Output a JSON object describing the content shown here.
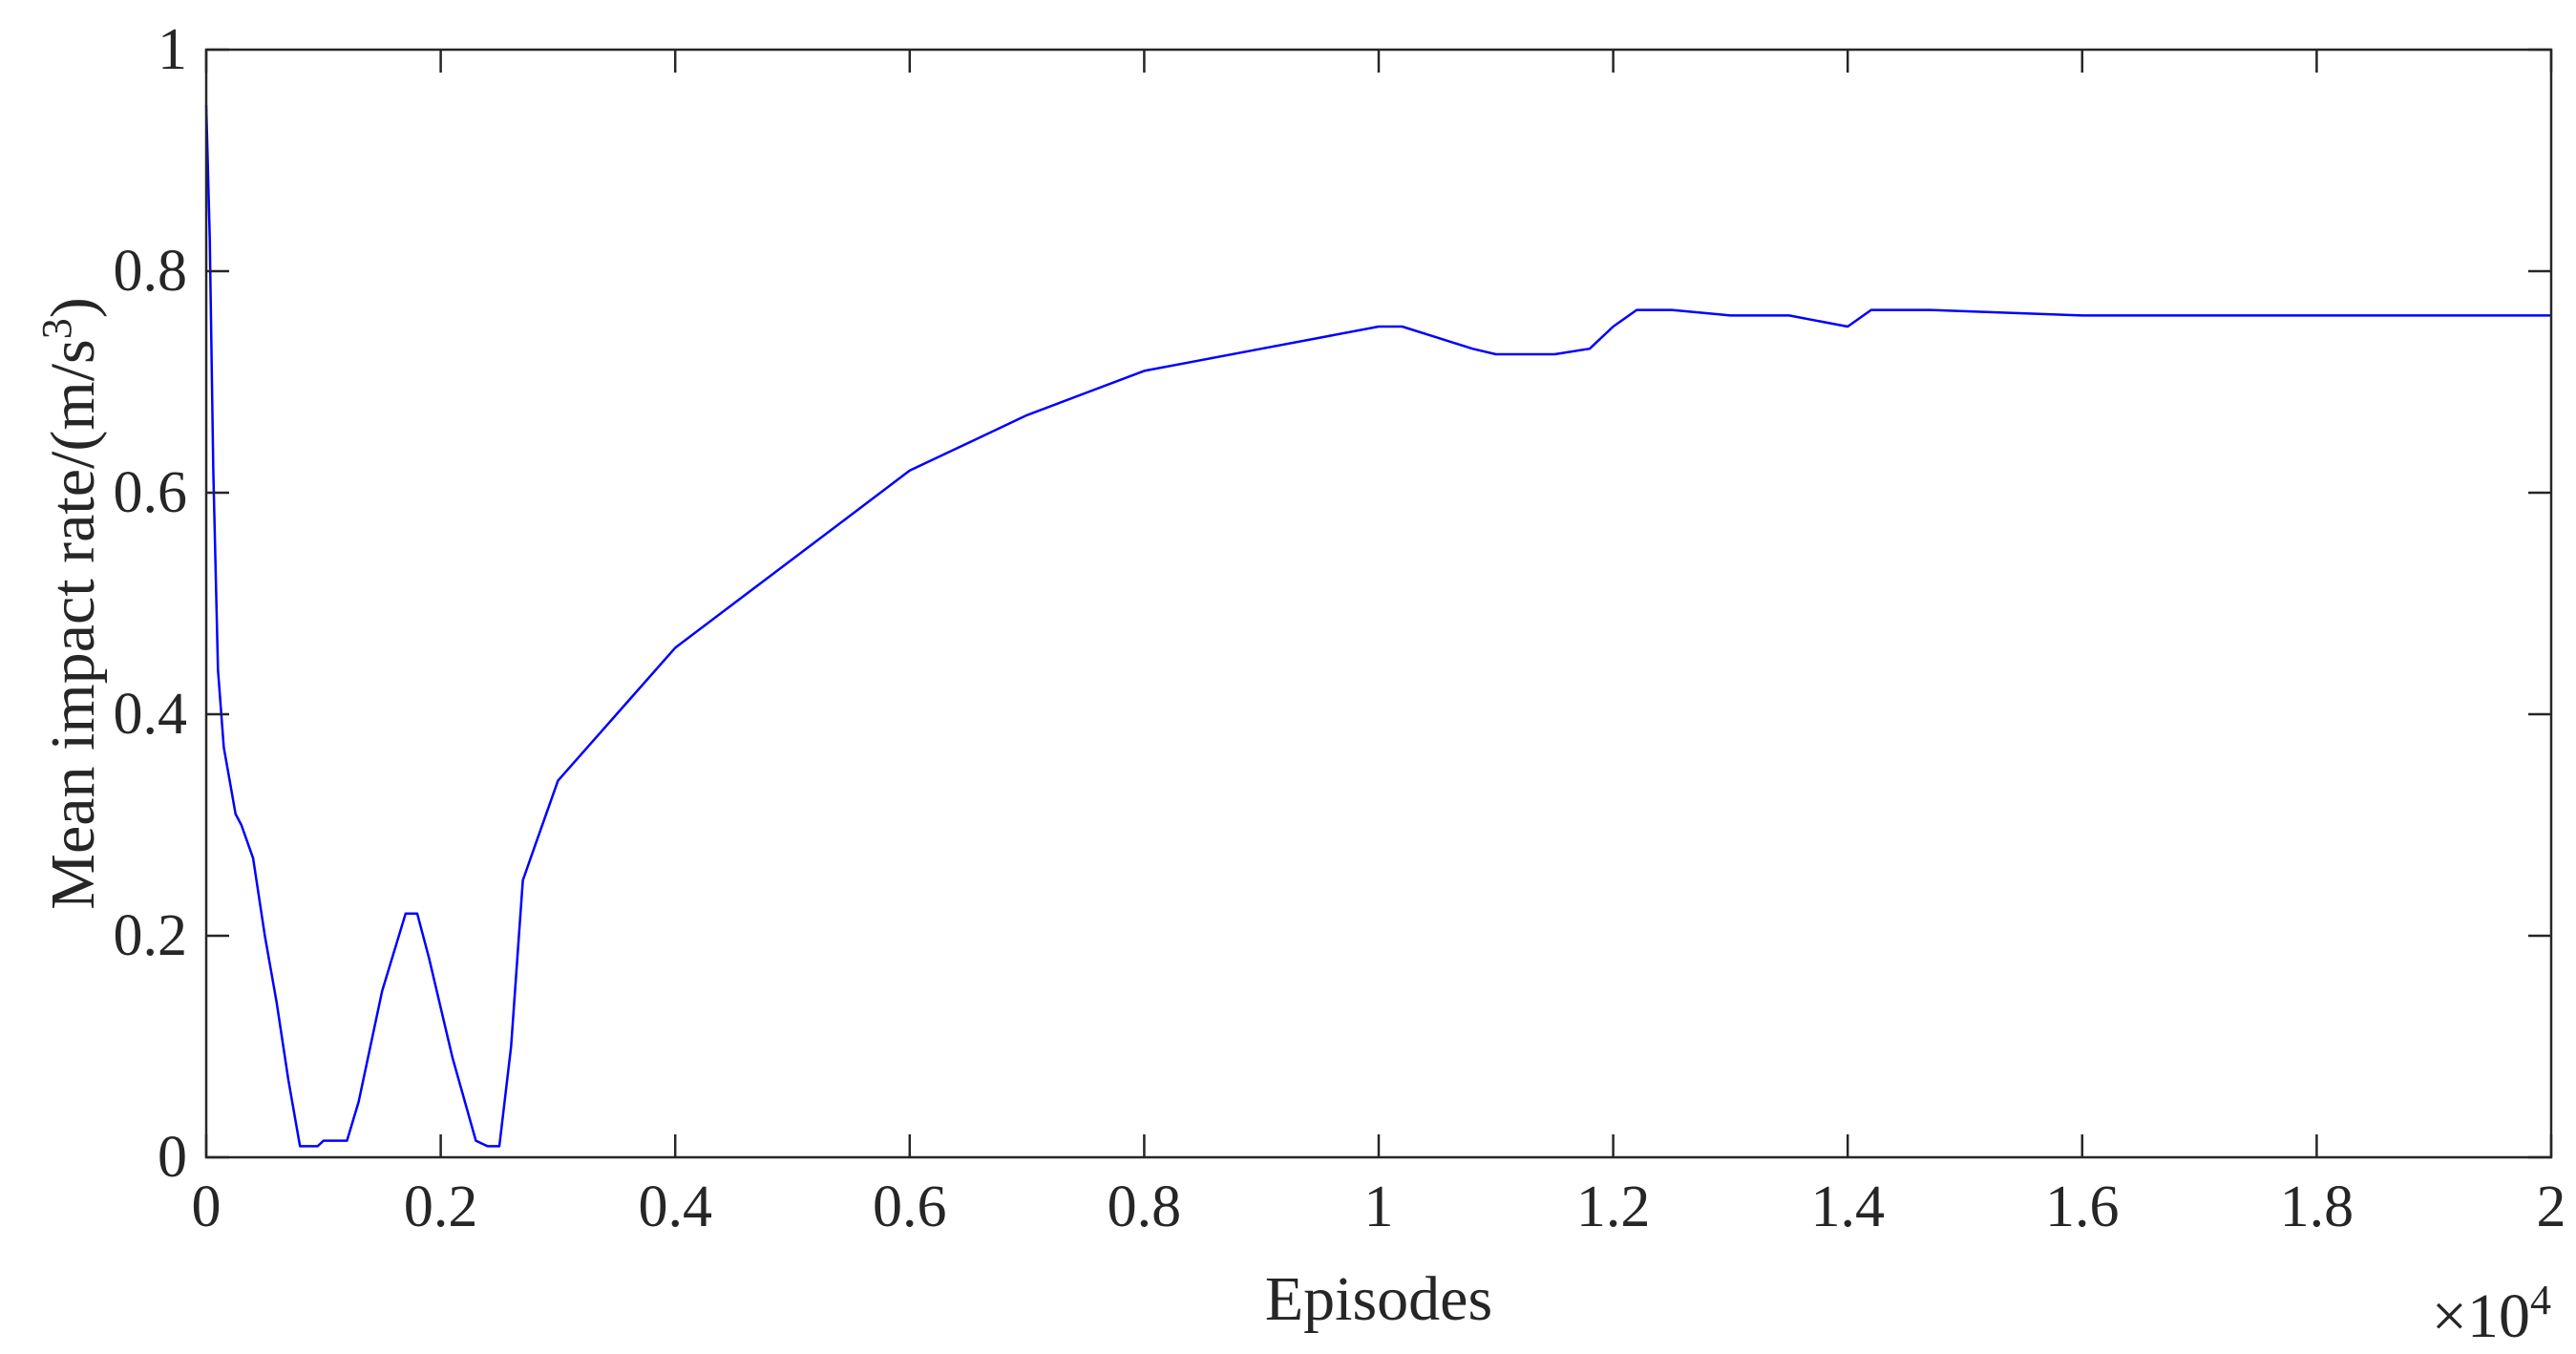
{
  "chart_data": {
    "type": "line",
    "xlabel": "Episodes",
    "ylabel_main": "Mean impact rate/(m/s",
    "ylabel_sup": "3",
    "ylabel_close": ")",
    "x_exponent_base": "×10",
    "x_exponent_power": "4",
    "x_scale_factor": 10000,
    "xlim": [
      0,
      2
    ],
    "ylim": [
      0,
      1
    ],
    "xticks": [
      0,
      0.2,
      0.4,
      0.6,
      0.8,
      1,
      1.2,
      1.4,
      1.6,
      1.8,
      2
    ],
    "xtick_labels": [
      "0",
      "0.2",
      "0.4",
      "0.6",
      "0.8",
      "1",
      "1.2",
      "1.4",
      "1.6",
      "1.8",
      "2"
    ],
    "yticks": [
      0,
      0.2,
      0.4,
      0.6,
      0.8,
      1
    ],
    "ytick_labels": [
      "0",
      "0.2",
      "0.4",
      "0.6",
      "0.8",
      "1"
    ],
    "grid": false,
    "box": true,
    "colors": {
      "series": "#0000ff",
      "axes": "#262626"
    },
    "series": [
      {
        "x": [
          0,
          0.003,
          0.006,
          0.01,
          0.015,
          0.02,
          0.025,
          0.03,
          0.04,
          0.05,
          0.06,
          0.07,
          0.08,
          0.09,
          0.095,
          0.1,
          0.12,
          0.13,
          0.15,
          0.17,
          0.18,
          0.19,
          0.21,
          0.23,
          0.24,
          0.25,
          0.26,
          0.27,
          0.28,
          0.3,
          0.35,
          0.4,
          0.5,
          0.6,
          0.7,
          0.8,
          0.85,
          0.9,
          0.95,
          1.0,
          1.02,
          1.05,
          1.08,
          1.1,
          1.15,
          1.18,
          1.2,
          1.22,
          1.25,
          1.3,
          1.35,
          1.4,
          1.42,
          1.47,
          1.6,
          1.8,
          2.0
        ],
        "y": [
          0.95,
          0.83,
          0.62,
          0.44,
          0.37,
          0.34,
          0.31,
          0.3,
          0.27,
          0.2,
          0.14,
          0.07,
          0.01,
          0.01,
          0.01,
          0.015,
          0.015,
          0.05,
          0.15,
          0.22,
          0.22,
          0.18,
          0.09,
          0.015,
          0.01,
          0.01,
          0.1,
          0.25,
          0.28,
          0.34,
          0.4,
          0.46,
          0.54,
          0.62,
          0.67,
          0.71,
          0.72,
          0.73,
          0.74,
          0.75,
          0.75,
          0.74,
          0.73,
          0.725,
          0.725,
          0.73,
          0.75,
          0.765,
          0.765,
          0.76,
          0.76,
          0.75,
          0.765,
          0.765,
          0.76,
          0.76,
          0.76
        ]
      }
    ]
  }
}
